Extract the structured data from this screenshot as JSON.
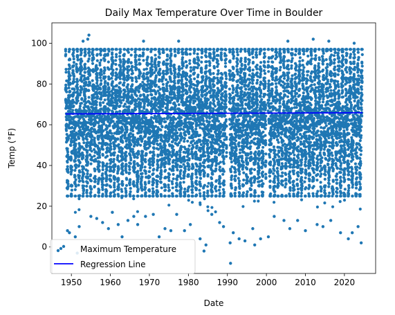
{
  "chart_data": {
    "type": "scatter",
    "title": "Daily Max Temperature Over Time in Boulder",
    "xlabel": "Date",
    "ylabel": "Temp (°F)",
    "xlim": [
      1945,
      2028
    ],
    "ylim": [
      -13,
      110
    ],
    "x_ticks": [
      1950,
      1960,
      1970,
      1980,
      1990,
      2000,
      2010,
      2020
    ],
    "y_ticks": [
      0,
      20,
      40,
      60,
      80,
      100
    ],
    "grid": false,
    "legend_position": "lower-left",
    "data_range": {
      "start": 1948.5,
      "end": 2024.6
    },
    "gaps": [
      [
        1989.8,
        1990.5
      ],
      [
        1999.9,
        2000.4
      ]
    ],
    "colors": {
      "scatter": "#1f77b4",
      "regression": "#0000ff"
    },
    "series": [
      {
        "name": "Maximum Temperature",
        "kind": "scatter",
        "approx_band": {
          "typical_min": 25,
          "typical_max": 97
        },
        "points": [
          {
            "x": 1954.5,
            "y": 104
          },
          {
            "x": 1954.2,
            "y": 102
          },
          {
            "x": 1953.0,
            "y": 101
          },
          {
            "x": 1977.5,
            "y": 101
          },
          {
            "x": 1968.5,
            "y": 101
          },
          {
            "x": 2012.0,
            "y": 102
          },
          {
            "x": 2005.5,
            "y": 101
          },
          {
            "x": 2016.0,
            "y": 101
          },
          {
            "x": 2022.5,
            "y": 100
          },
          {
            "x": 1949.0,
            "y": 8
          },
          {
            "x": 1949.5,
            "y": 7
          },
          {
            "x": 1951.0,
            "y": 5
          },
          {
            "x": 1951.5,
            "y": -3
          },
          {
            "x": 1952.0,
            "y": 10
          },
          {
            "x": 1955.0,
            "y": 15
          },
          {
            "x": 1956.5,
            "y": 14
          },
          {
            "x": 1958.0,
            "y": 12
          },
          {
            "x": 1959.5,
            "y": 9
          },
          {
            "x": 1960.5,
            "y": 17
          },
          {
            "x": 1962.0,
            "y": 11
          },
          {
            "x": 1963.0,
            "y": 5
          },
          {
            "x": 1964.5,
            "y": 13
          },
          {
            "x": 1966.0,
            "y": 15
          },
          {
            "x": 1967.0,
            "y": 11
          },
          {
            "x": 1969.0,
            "y": 15
          },
          {
            "x": 1971.0,
            "y": 16
          },
          {
            "x": 1972.5,
            "y": 5
          },
          {
            "x": 1974.0,
            "y": 9
          },
          {
            "x": 1975.5,
            "y": 8
          },
          {
            "x": 1977.0,
            "y": 16
          },
          {
            "x": 1979.0,
            "y": 8
          },
          {
            "x": 1980.5,
            "y": 11
          },
          {
            "x": 1983.0,
            "y": 4
          },
          {
            "x": 1984.5,
            "y": 1
          },
          {
            "x": 1984.0,
            "y": -2
          },
          {
            "x": 1986.0,
            "y": 16
          },
          {
            "x": 1988.0,
            "y": 12
          },
          {
            "x": 1989.0,
            "y": 10
          },
          {
            "x": 1990.8,
            "y": -8
          },
          {
            "x": 1990.7,
            "y": 2
          },
          {
            "x": 1991.5,
            "y": 7
          },
          {
            "x": 1993.0,
            "y": 4
          },
          {
            "x": 1994.5,
            "y": 3
          },
          {
            "x": 1996.5,
            "y": 9
          },
          {
            "x": 1997.0,
            "y": 1
          },
          {
            "x": 1998.5,
            "y": 4
          },
          {
            "x": 2000.5,
            "y": 5
          },
          {
            "x": 2002.0,
            "y": 15
          },
          {
            "x": 2004.5,
            "y": 13
          },
          {
            "x": 2006.0,
            "y": 9
          },
          {
            "x": 2008.0,
            "y": 13
          },
          {
            "x": 2010.0,
            "y": 8
          },
          {
            "x": 2013.0,
            "y": 11
          },
          {
            "x": 2014.5,
            "y": 10
          },
          {
            "x": 2016.5,
            "y": 13
          },
          {
            "x": 2019.0,
            "y": 7
          },
          {
            "x": 2021.0,
            "y": 4
          },
          {
            "x": 2022.0,
            "y": 7
          },
          {
            "x": 2023.5,
            "y": 10
          },
          {
            "x": 2024.3,
            "y": 2
          }
        ]
      },
      {
        "name": "Regression Line",
        "kind": "line",
        "points": [
          {
            "x": 1948.5,
            "y": 65.3
          },
          {
            "x": 2024.6,
            "y": 65.9
          }
        ]
      }
    ]
  }
}
